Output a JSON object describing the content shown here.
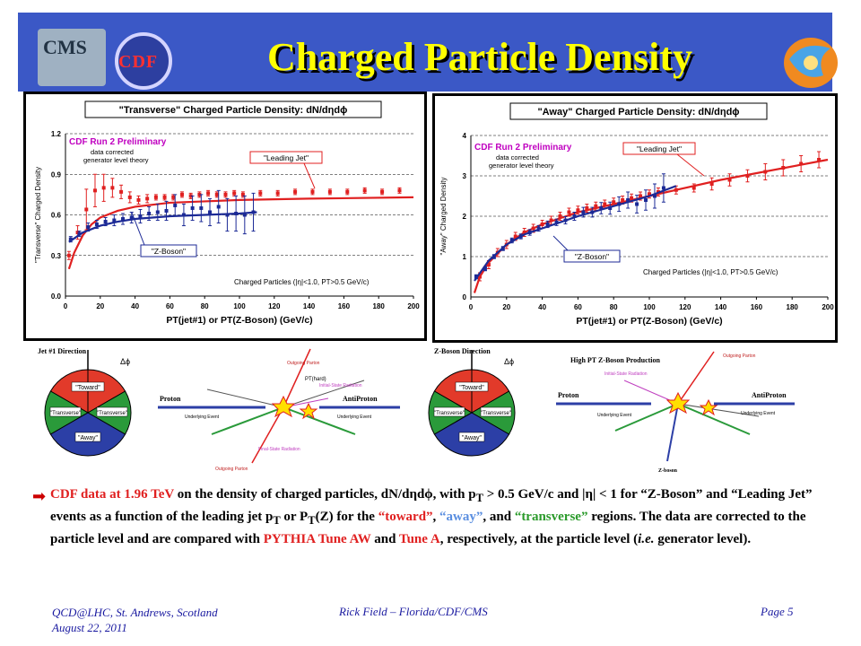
{
  "header": {
    "title": "Charged Particle Density",
    "logo_cms": "CMS",
    "logo_cdf": "CDF",
    "colors": {
      "background": "#3b58c6",
      "title": "#ffff00"
    }
  },
  "chart_data": [
    {
      "type": "scatter",
      "title": "\"Transverse\" Charged Particle Density: dN/dηdϕ",
      "xlabel": "PT(jet#1) or PT(Z-Boson)  (GeV/c)",
      "ylabel": "\"Transverse\" Charged Density",
      "xlim": [
        0,
        200
      ],
      "ylim": [
        0,
        1.2
      ],
      "xticks": [
        0,
        20,
        40,
        60,
        80,
        100,
        120,
        140,
        160,
        180,
        200
      ],
      "yticks": [
        0.0,
        0.3,
        0.6,
        0.9,
        1.2
      ],
      "ytick_labels": [
        "0.0",
        "0.3",
        "0.6",
        "0.9",
        "1.2"
      ],
      "grid": true,
      "annotations": {
        "prelim": "CDF Run 2 Preliminary",
        "corrected_1": "data corrected",
        "corrected_2": "generator level theory",
        "leading_jet": "\"Leading Jet\"",
        "z_boson": "\"Z-Boson\"",
        "cuts": "Charged Particles (|η|<1.0, PT>0.5 GeV/c)"
      },
      "series": [
        {
          "name": "\"Leading Jet\"",
          "color": "#e02020",
          "x": [
            2,
            7,
            12,
            17,
            22,
            27,
            32,
            37,
            42,
            47,
            52,
            57,
            62,
            67,
            72,
            77,
            82,
            87,
            92,
            97,
            102,
            112,
            122,
            132,
            142,
            152,
            162,
            172,
            182,
            192
          ],
          "y": [
            0.3,
            0.47,
            0.64,
            0.78,
            0.8,
            0.8,
            0.77,
            0.73,
            0.71,
            0.72,
            0.73,
            0.73,
            0.73,
            0.75,
            0.74,
            0.75,
            0.76,
            0.75,
            0.75,
            0.76,
            0.75,
            0.76,
            0.76,
            0.77,
            0.77,
            0.77,
            0.77,
            0.78,
            0.77,
            0.78
          ],
          "err": [
            0.03,
            0.05,
            0.15,
            0.12,
            0.1,
            0.07,
            0.05,
            0.04,
            0.03,
            0.03,
            0.02,
            0.02,
            0.02,
            0.02,
            0.02,
            0.02,
            0.02,
            0.02,
            0.02,
            0.02,
            0.02,
            0.02,
            0.02,
            0.02,
            0.02,
            0.02,
            0.02,
            0.02,
            0.02,
            0.02
          ],
          "theory_x": [
            2,
            5,
            10,
            15,
            20,
            30,
            40,
            60,
            80,
            100,
            140,
            200
          ],
          "theory_y": [
            0.2,
            0.32,
            0.45,
            0.53,
            0.58,
            0.63,
            0.66,
            0.69,
            0.7,
            0.71,
            0.72,
            0.73
          ]
        },
        {
          "name": "\"Z-Boson\"",
          "color": "#1c2a96",
          "x": [
            3,
            8,
            13,
            18,
            23,
            28,
            33,
            38,
            43,
            48,
            53,
            58,
            63,
            68,
            73,
            78,
            83,
            88,
            93,
            98,
            103,
            108
          ],
          "y": [
            0.42,
            0.46,
            0.51,
            0.53,
            0.55,
            0.56,
            0.57,
            0.58,
            0.59,
            0.61,
            0.62,
            0.63,
            0.67,
            0.6,
            0.65,
            0.65,
            0.62,
            0.66,
            0.6,
            0.61,
            0.6,
            0.62
          ],
          "err": [
            0.02,
            0.02,
            0.03,
            0.03,
            0.03,
            0.04,
            0.04,
            0.04,
            0.05,
            0.05,
            0.06,
            0.07,
            0.08,
            0.08,
            0.09,
            0.1,
            0.1,
            0.12,
            0.12,
            0.13,
            0.14,
            0.14
          ],
          "theory_x": [
            2,
            10,
            20,
            30,
            40,
            60,
            80,
            100,
            110
          ],
          "theory_y": [
            0.4,
            0.47,
            0.52,
            0.55,
            0.57,
            0.59,
            0.6,
            0.61,
            0.62
          ]
        }
      ]
    },
    {
      "type": "scatter",
      "title": "\"Away\" Charged Particle Density: dN/dηdϕ",
      "xlabel": "PT(jet#1) or PT(Z-Boson)  (GeV/c)",
      "ylabel": "\"Away\" Charged Density",
      "xlim": [
        0,
        200
      ],
      "ylim": [
        0,
        4
      ],
      "xticks": [
        0,
        20,
        40,
        60,
        80,
        100,
        120,
        140,
        160,
        180,
        200
      ],
      "yticks": [
        0,
        1,
        2,
        3,
        4
      ],
      "ytick_labels": [
        "0",
        "1",
        "2",
        "3",
        "4"
      ],
      "grid": true,
      "annotations": {
        "prelim": "CDF Run 2 Preliminary",
        "corrected_1": "data corrected",
        "corrected_2": "generator level theory",
        "leading_jet": "\"Leading Jet\"",
        "z_boson": "\"Z-Boson\"",
        "cuts": "Charged Particles (|η|<1.0, PT>0.5 GeV/c)"
      },
      "series": [
        {
          "name": "\"Leading Jet\"",
          "color": "#e02020",
          "x": [
            5,
            10,
            15,
            20,
            25,
            30,
            35,
            40,
            45,
            50,
            55,
            60,
            65,
            70,
            75,
            80,
            85,
            90,
            95,
            100,
            105,
            115,
            125,
            135,
            145,
            155,
            165,
            175,
            185,
            195
          ],
          "y": [
            0.5,
            0.8,
            1.1,
            1.3,
            1.5,
            1.6,
            1.7,
            1.8,
            1.9,
            2.0,
            2.1,
            2.15,
            2.2,
            2.25,
            2.3,
            2.35,
            2.4,
            2.45,
            2.5,
            2.55,
            2.6,
            2.65,
            2.7,
            2.8,
            2.9,
            3.0,
            3.1,
            3.2,
            3.3,
            3.4
          ],
          "err": [
            0.1,
            0.1,
            0.1,
            0.1,
            0.1,
            0.1,
            0.1,
            0.1,
            0.1,
            0.1,
            0.1,
            0.1,
            0.1,
            0.1,
            0.1,
            0.1,
            0.1,
            0.1,
            0.1,
            0.1,
            0.1,
            0.1,
            0.1,
            0.15,
            0.15,
            0.15,
            0.2,
            0.2,
            0.2,
            0.2
          ],
          "theory_x": [
            2,
            5,
            10,
            20,
            30,
            40,
            60,
            80,
            100,
            140,
            200
          ],
          "theory_y": [
            0.1,
            0.5,
            0.85,
            1.3,
            1.6,
            1.8,
            2.1,
            2.3,
            2.5,
            2.9,
            3.4
          ]
        },
        {
          "name": "\"Z-Boson\"",
          "color": "#1c2a96",
          "x": [
            3,
            8,
            13,
            18,
            23,
            28,
            33,
            38,
            43,
            48,
            53,
            58,
            63,
            68,
            73,
            78,
            83,
            88,
            93,
            98,
            103,
            108
          ],
          "y": [
            0.5,
            0.7,
            1.0,
            1.2,
            1.4,
            1.5,
            1.6,
            1.7,
            1.8,
            1.85,
            1.9,
            2.0,
            2.1,
            2.1,
            2.2,
            2.2,
            2.3,
            2.4,
            2.3,
            2.4,
            2.5,
            2.7
          ],
          "err": [
            0.05,
            0.05,
            0.05,
            0.05,
            0.06,
            0.06,
            0.07,
            0.07,
            0.08,
            0.08,
            0.09,
            0.1,
            0.12,
            0.12,
            0.14,
            0.15,
            0.18,
            0.2,
            0.22,
            0.25,
            0.3,
            0.35
          ],
          "theory_x": [
            2,
            10,
            20,
            30,
            40,
            60,
            80,
            100,
            115
          ],
          "theory_y": [
            0.4,
            0.9,
            1.3,
            1.55,
            1.7,
            2.0,
            2.25,
            2.5,
            2.75
          ]
        }
      ]
    }
  ],
  "diagrams": {
    "left_direction": "Jet #1 Direction",
    "right_direction": "Z-Boson Direction",
    "toward": "\"Toward\"",
    "transverse": "\"Transverse\"",
    "away": "\"Away\"",
    "proton": "Proton",
    "antiproton": "AntiProton",
    "underlying_event": "Underlying Event",
    "outgoing_parton": "Outgoing Parton",
    "pt_hard": "PT(hard)",
    "initial_state": "Initial-State Radiation",
    "final_state": "Final-State Radiation",
    "high_pt_z": "High PT Z-Boson Production",
    "z_boson": "Z-boson"
  },
  "body": {
    "part1": "CDF data at 1.96 TeV",
    "part2": " on the density of charged particles, dN/dηdϕ, with p",
    "sub_t1": "T",
    "part3": " > 0.5 GeV/c and |η| < 1 for “Z-Boson” and “Leading Jet” events as a function of the leading jet p",
    "sub_t2": "T",
    "part4": " or P",
    "sub_t3": "T",
    "part5": "(Z) for the ",
    "toward": "“toward”",
    "comma1": ", ",
    "away": "“away”",
    "and1": ", and ",
    "transverse": "“transverse”",
    "part6": " regions.  The data are corrected to the particle level and are compared with ",
    "tune_aw": "PYTHIA Tune AW",
    "and2": " and ",
    "tune_a": "Tune A",
    "part7": ", respectively, at the particle level (",
    "ie": "i.e.",
    "part8": " generator level)."
  },
  "footer": {
    "left_line1": "QCD@LHC, St. Andrews, Scotland",
    "left_line2": "August 22, 2011",
    "center": "Rick Field – Florida/CDF/CMS",
    "right": "Page 5"
  }
}
